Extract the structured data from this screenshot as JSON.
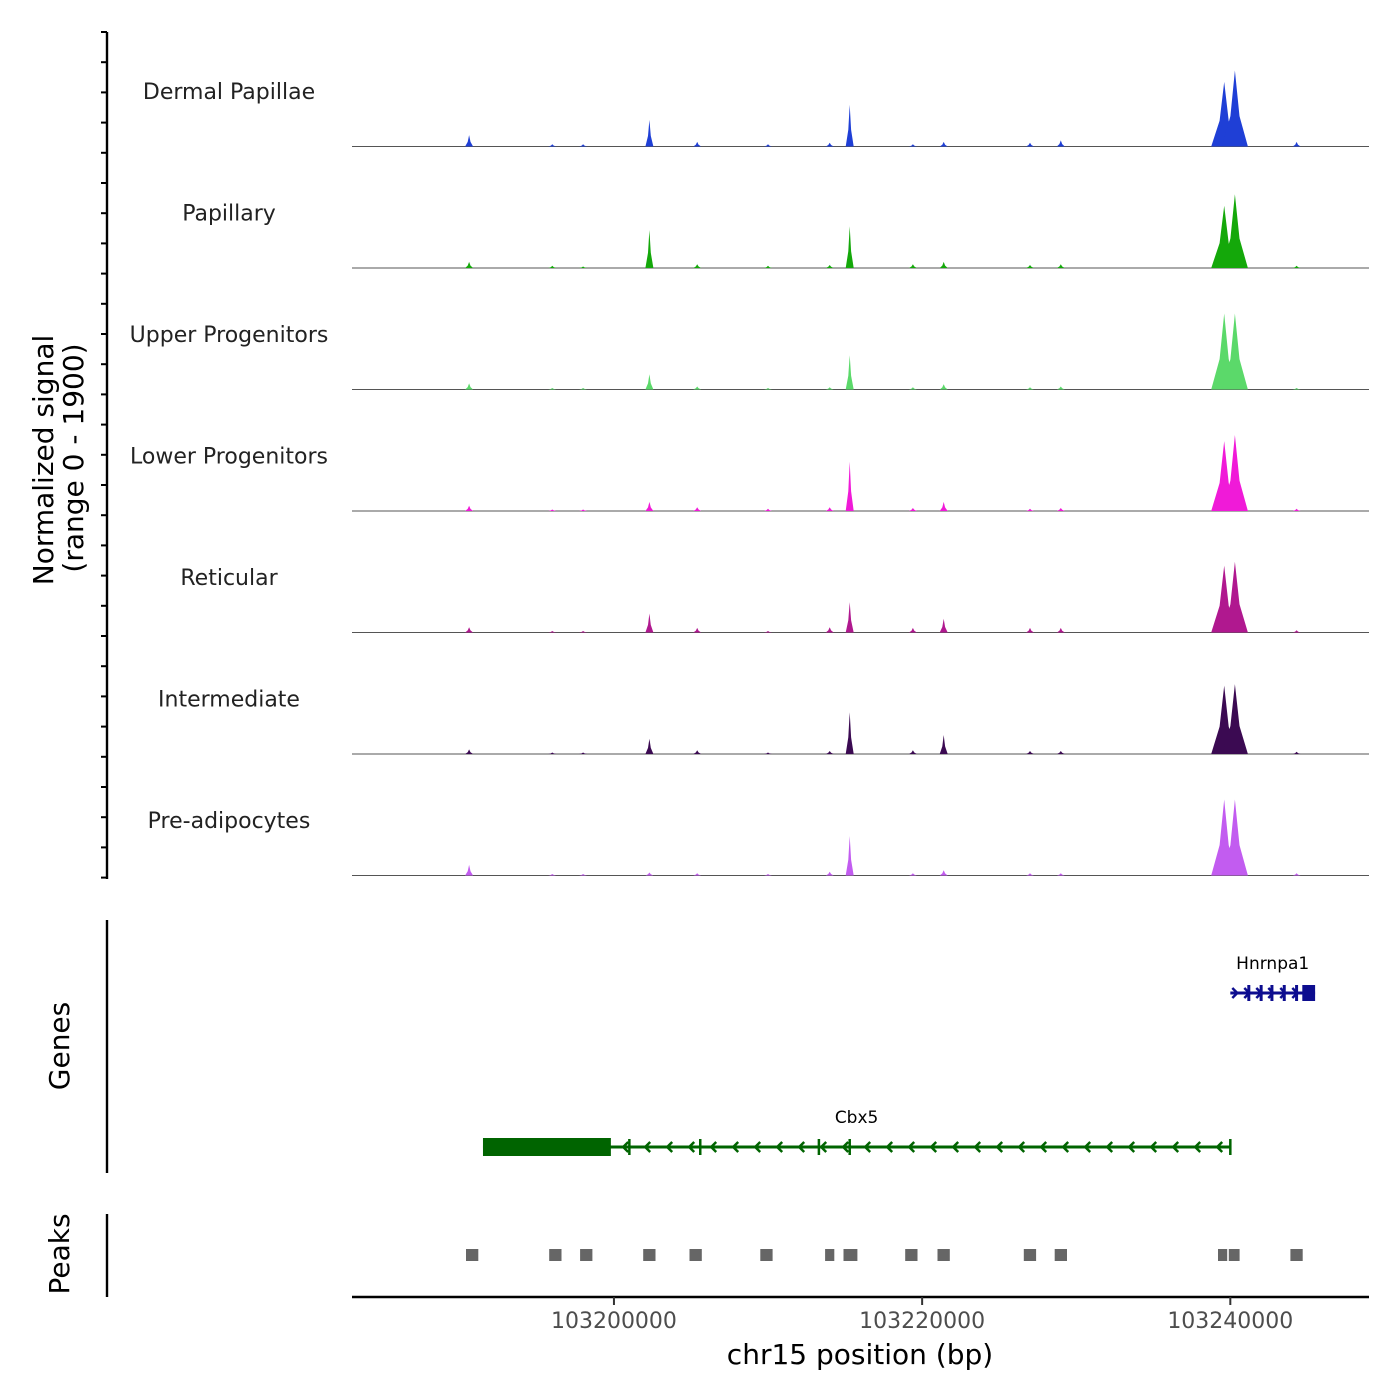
{
  "chart_data": {
    "type": "area",
    "title": "",
    "chromosome": "chr15",
    "xlabel": "chr15 position (bp)",
    "ylabel": "Normalized signal",
    "ylabel_range": "(range 0 - 1900)",
    "y_range": [
      0,
      1900
    ],
    "x_range": [
      103183000,
      103249000
    ],
    "x_ticks": [
      103200000,
      103220000,
      103240000
    ],
    "x_tick_labels": [
      "103200000",
      "103220000",
      "103240000"
    ],
    "tracks": [
      {
        "name": "Dermal Papillae",
        "color": "#1f3fd6"
      },
      {
        "name": "Papillary",
        "color": "#14a80a"
      },
      {
        "name": "Upper Progenitors",
        "color": "#5bd96a"
      },
      {
        "name": "Lower Progenitors",
        "color": "#f01ad8"
      },
      {
        "name": "Reticular",
        "color": "#b0188f"
      },
      {
        "name": "Intermediate",
        "color": "#3b0a52"
      },
      {
        "name": "Pre-adipocytes",
        "color": "#c25cf0"
      }
    ],
    "peak_positions": [
      103190600,
      103196000,
      103198000,
      103202300,
      103205400,
      103210000,
      103214000,
      103215300,
      103219400,
      103221400,
      103227000,
      103229000,
      103239600,
      103240300,
      103244300
    ],
    "peak_heights": [
      [
        0.15,
        0.03,
        0.03,
        0.35,
        0.06,
        0.03,
        0.05,
        0.55,
        0.03,
        0.06,
        0.05,
        0.08,
        0.85,
        1.0,
        0.06
      ],
      [
        0.08,
        0.03,
        0.02,
        0.5,
        0.05,
        0.03,
        0.04,
        0.55,
        0.05,
        0.08,
        0.04,
        0.05,
        0.82,
        0.97,
        0.03
      ],
      [
        0.08,
        0.02,
        0.02,
        0.2,
        0.04,
        0.02,
        0.03,
        0.45,
        0.03,
        0.07,
        0.03,
        0.04,
        1.0,
        1.0,
        0.02
      ],
      [
        0.07,
        0.02,
        0.02,
        0.12,
        0.05,
        0.03,
        0.05,
        0.65,
        0.04,
        0.12,
        0.03,
        0.04,
        0.92,
        1.0,
        0.03
      ],
      [
        0.07,
        0.02,
        0.02,
        0.25,
        0.06,
        0.02,
        0.07,
        0.4,
        0.06,
        0.18,
        0.06,
        0.06,
        0.88,
        0.93,
        0.03
      ],
      [
        0.06,
        0.02,
        0.02,
        0.2,
        0.05,
        0.02,
        0.04,
        0.55,
        0.05,
        0.25,
        0.04,
        0.04,
        0.9,
        0.92,
        0.03
      ],
      [
        0.14,
        0.02,
        0.02,
        0.04,
        0.03,
        0.02,
        0.05,
        0.52,
        0.03,
        0.07,
        0.03,
        0.03,
        1.0,
        1.0,
        0.03
      ]
    ],
    "genes": [
      {
        "name": "Hnrnpa1",
        "start": 103240000,
        "end": 103245500,
        "strand": "+",
        "color": "#0d0d8f"
      },
      {
        "name": "Cbx5",
        "start": 103191500,
        "end": 103240000,
        "strand": "-",
        "color": "#006400"
      }
    ],
    "peaks": [
      {
        "start": 103190400,
        "end": 103191200
      },
      {
        "start": 103195800,
        "end": 103196600
      },
      {
        "start": 103197800,
        "end": 103198600
      },
      {
        "start": 103201900,
        "end": 103202700
      },
      {
        "start": 103204900,
        "end": 103205700
      },
      {
        "start": 103209500,
        "end": 103210300
      },
      {
        "start": 103213700,
        "end": 103214300
      },
      {
        "start": 103214900,
        "end": 103215800
      },
      {
        "start": 103218900,
        "end": 103219700
      },
      {
        "start": 103221000,
        "end": 103221800
      },
      {
        "start": 103226600,
        "end": 103227400
      },
      {
        "start": 103228600,
        "end": 103229400
      },
      {
        "start": 103239200,
        "end": 103239800
      },
      {
        "start": 103239900,
        "end": 103240600
      },
      {
        "start": 103243900,
        "end": 103244700
      }
    ],
    "panel_titles": {
      "genes": "Genes",
      "peaks": "Peaks"
    },
    "colors": {
      "axis": "#000000",
      "baseline": "#555555",
      "peak_box": "#666666"
    }
  }
}
